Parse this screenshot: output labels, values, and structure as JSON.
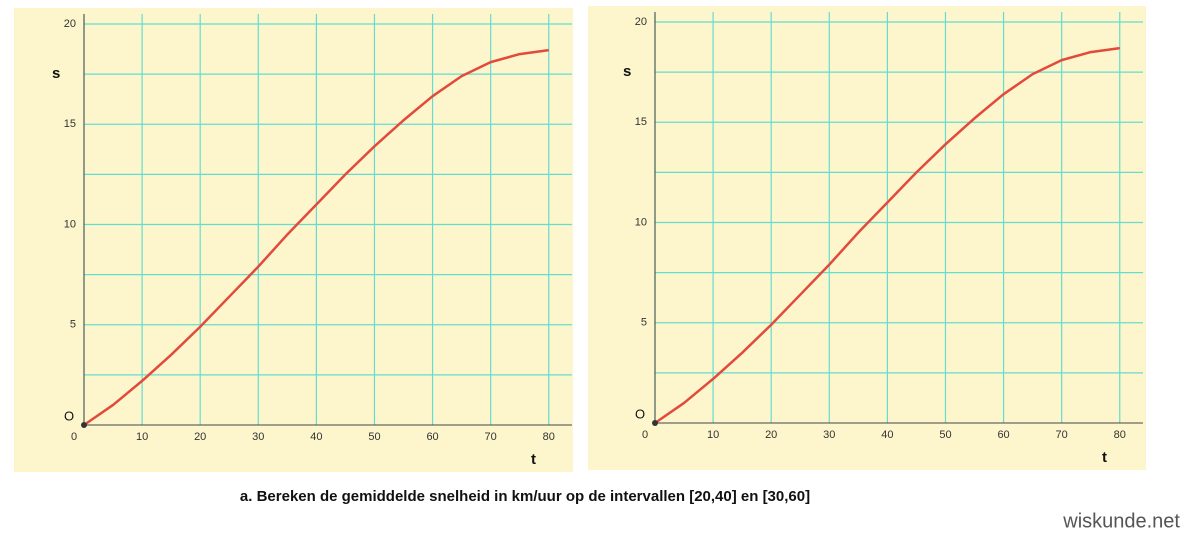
{
  "chart_data": [
    {
      "type": "line",
      "y_label": "s",
      "x_label": "t",
      "origin_label": "O",
      "x": [
        0,
        5,
        10,
        15,
        20,
        25,
        30,
        35,
        40,
        45,
        50,
        55,
        60,
        65,
        70,
        75,
        80
      ],
      "values": [
        0,
        1.0,
        2.2,
        3.5,
        4.9,
        6.4,
        7.9,
        9.5,
        11.0,
        12.5,
        13.9,
        15.2,
        16.4,
        17.4,
        18.1,
        18.5,
        18.7
      ],
      "color": "#e24a3b",
      "xlim": [
        0,
        84
      ],
      "ylim": [
        0,
        20.5
      ],
      "xticks": [
        0,
        10,
        20,
        30,
        40,
        50,
        60,
        70,
        80
      ],
      "yticks": [
        5,
        10,
        15,
        20
      ],
      "minor_yticks": [
        2.5,
        7.5,
        12.5,
        17.5
      ],
      "grid": true
    },
    {
      "type": "line",
      "y_label": "s",
      "x_label": "t",
      "origin_label": "O",
      "x": [
        0,
        5,
        10,
        15,
        20,
        25,
        30,
        35,
        40,
        45,
        50,
        55,
        60,
        65,
        70,
        75,
        80
      ],
      "values": [
        0,
        1.0,
        2.2,
        3.5,
        4.9,
        6.4,
        7.9,
        9.5,
        11.0,
        12.5,
        13.9,
        15.2,
        16.4,
        17.4,
        18.1,
        18.5,
        18.7
      ],
      "color": "#e24a3b",
      "xlim": [
        0,
        84
      ],
      "ylim": [
        0,
        20.5
      ],
      "xticks": [
        0,
        10,
        20,
        30,
        40,
        50,
        60,
        70,
        80
      ],
      "yticks": [
        5,
        10,
        15,
        20
      ],
      "minor_yticks": [
        2.5,
        7.5,
        12.5,
        17.5
      ],
      "grid": true
    }
  ],
  "caption": "a. Bereken de gemiddelde snelheid in km/uur op de intervallen [20,40] en [30,60]",
  "watermark": "wiskunde.net"
}
